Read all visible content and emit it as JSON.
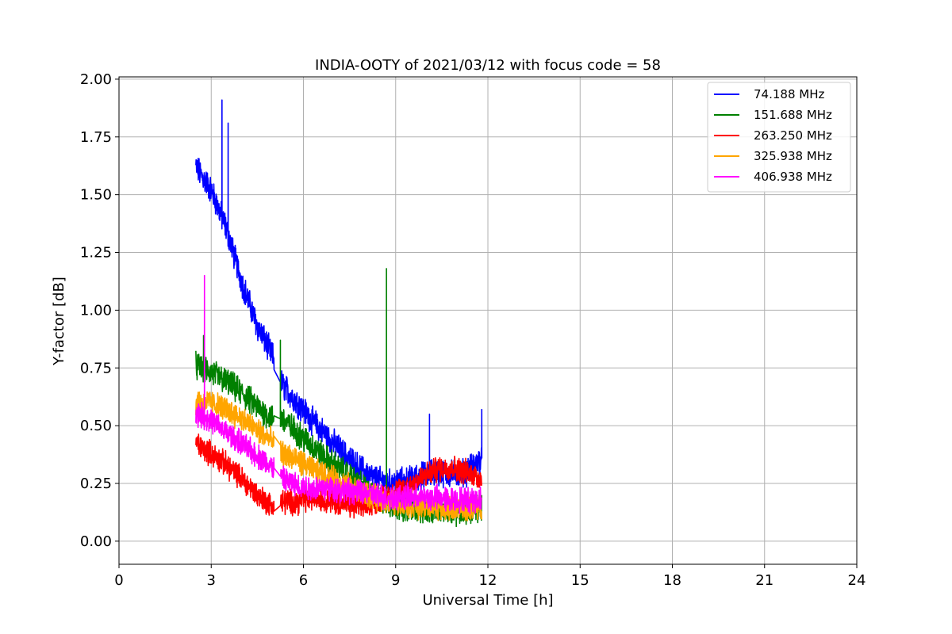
{
  "chart_data": {
    "type": "line",
    "title": "INDIA-OOTY of 2021/03/12 with focus code = 58",
    "xlabel": "Universal Time [h]",
    "ylabel": "Y-factor [dB]",
    "xlim": [
      0,
      24
    ],
    "ylim": [
      -0.1,
      2.01
    ],
    "xticks": [
      0,
      3,
      6,
      9,
      12,
      15,
      18,
      21,
      24
    ],
    "xtick_labels": [
      "0",
      "3",
      "6",
      "9",
      "12",
      "15",
      "18",
      "21",
      "24"
    ],
    "yticks": [
      0.0,
      0.25,
      0.5,
      0.75,
      1.0,
      1.25,
      1.5,
      1.75,
      2.0
    ],
    "ytick_labels": [
      "0.00",
      "0.25",
      "0.50",
      "0.75",
      "1.00",
      "1.25",
      "1.50",
      "1.75",
      "2.00"
    ],
    "grid": true,
    "legend_position": "top-right",
    "gap": [
      5.05,
      5.25
    ],
    "series": [
      {
        "name": " 74.188 MHz",
        "color": "#0000ff",
        "x": [
          2.5,
          3.0,
          3.5,
          4.0,
          4.5,
          5.0,
          5.3,
          5.8,
          6.3,
          6.8,
          7.3,
          7.8,
          8.3,
          8.8,
          9.3,
          9.8,
          10.3,
          10.8,
          11.3,
          11.8
        ],
        "y": [
          1.62,
          1.52,
          1.35,
          1.12,
          0.93,
          0.8,
          0.68,
          0.6,
          0.52,
          0.45,
          0.38,
          0.32,
          0.27,
          0.25,
          0.26,
          0.28,
          0.3,
          0.29,
          0.3,
          0.36
        ],
        "noise": 0.05,
        "spikes": [
          [
            3.35,
            1.91
          ],
          [
            3.55,
            1.81
          ],
          [
            10.1,
            0.55
          ],
          [
            11.8,
            0.57
          ]
        ]
      },
      {
        "name": "151.688 MHz",
        "color": "#008000",
        "x": [
          2.5,
          3.0,
          3.5,
          4.0,
          4.5,
          5.0,
          5.3,
          5.8,
          6.3,
          6.8,
          7.3,
          7.8,
          8.3,
          8.8,
          9.3,
          9.8,
          10.3,
          10.8,
          11.3,
          11.8
        ],
        "y": [
          0.76,
          0.73,
          0.69,
          0.64,
          0.58,
          0.53,
          0.53,
          0.47,
          0.41,
          0.35,
          0.3,
          0.25,
          0.19,
          0.16,
          0.15,
          0.14,
          0.14,
          0.13,
          0.13,
          0.15
        ],
        "noise": 0.05,
        "spikes": [
          [
            2.75,
            0.89
          ],
          [
            5.25,
            0.87
          ],
          [
            8.7,
            1.18
          ]
        ]
      },
      {
        "name": "263.250 MHz",
        "color": "#ff0000",
        "x": [
          2.5,
          3.0,
          3.5,
          4.0,
          4.5,
          5.0,
          5.3,
          5.8,
          6.3,
          6.8,
          7.3,
          7.8,
          8.3,
          8.8,
          9.3,
          9.8,
          10.3,
          10.8,
          11.3,
          11.8
        ],
        "y": [
          0.42,
          0.38,
          0.33,
          0.27,
          0.2,
          0.15,
          0.17,
          0.17,
          0.19,
          0.18,
          0.16,
          0.15,
          0.17,
          0.2,
          0.23,
          0.27,
          0.31,
          0.32,
          0.3,
          0.27
        ],
        "noise": 0.045,
        "spikes": []
      },
      {
        "name": "325.938 MHz",
        "color": "#ffa500",
        "x": [
          2.5,
          3.0,
          3.5,
          4.0,
          4.5,
          5.0,
          5.3,
          5.8,
          6.3,
          6.8,
          7.3,
          7.8,
          8.3,
          8.8,
          9.3,
          9.8,
          10.3,
          10.8,
          11.3,
          11.8
        ],
        "y": [
          0.6,
          0.6,
          0.57,
          0.53,
          0.48,
          0.43,
          0.38,
          0.35,
          0.31,
          0.28,
          0.25,
          0.22,
          0.19,
          0.17,
          0.16,
          0.15,
          0.15,
          0.14,
          0.14,
          0.15
        ],
        "noise": 0.045,
        "spikes": []
      },
      {
        "name": "406.938 MHz",
        "color": "#ff00ff",
        "x": [
          2.5,
          3.0,
          3.5,
          4.0,
          4.5,
          5.0,
          5.3,
          5.8,
          6.3,
          6.8,
          7.3,
          7.8,
          8.3,
          8.8,
          9.3,
          9.8,
          10.3,
          10.8,
          11.3,
          11.8
        ],
        "y": [
          0.56,
          0.52,
          0.47,
          0.42,
          0.37,
          0.32,
          0.27,
          0.24,
          0.23,
          0.23,
          0.22,
          0.21,
          0.2,
          0.19,
          0.19,
          0.19,
          0.19,
          0.18,
          0.18,
          0.18
        ],
        "noise": 0.045,
        "spikes": [
          [
            2.78,
            1.15
          ]
        ]
      }
    ]
  }
}
